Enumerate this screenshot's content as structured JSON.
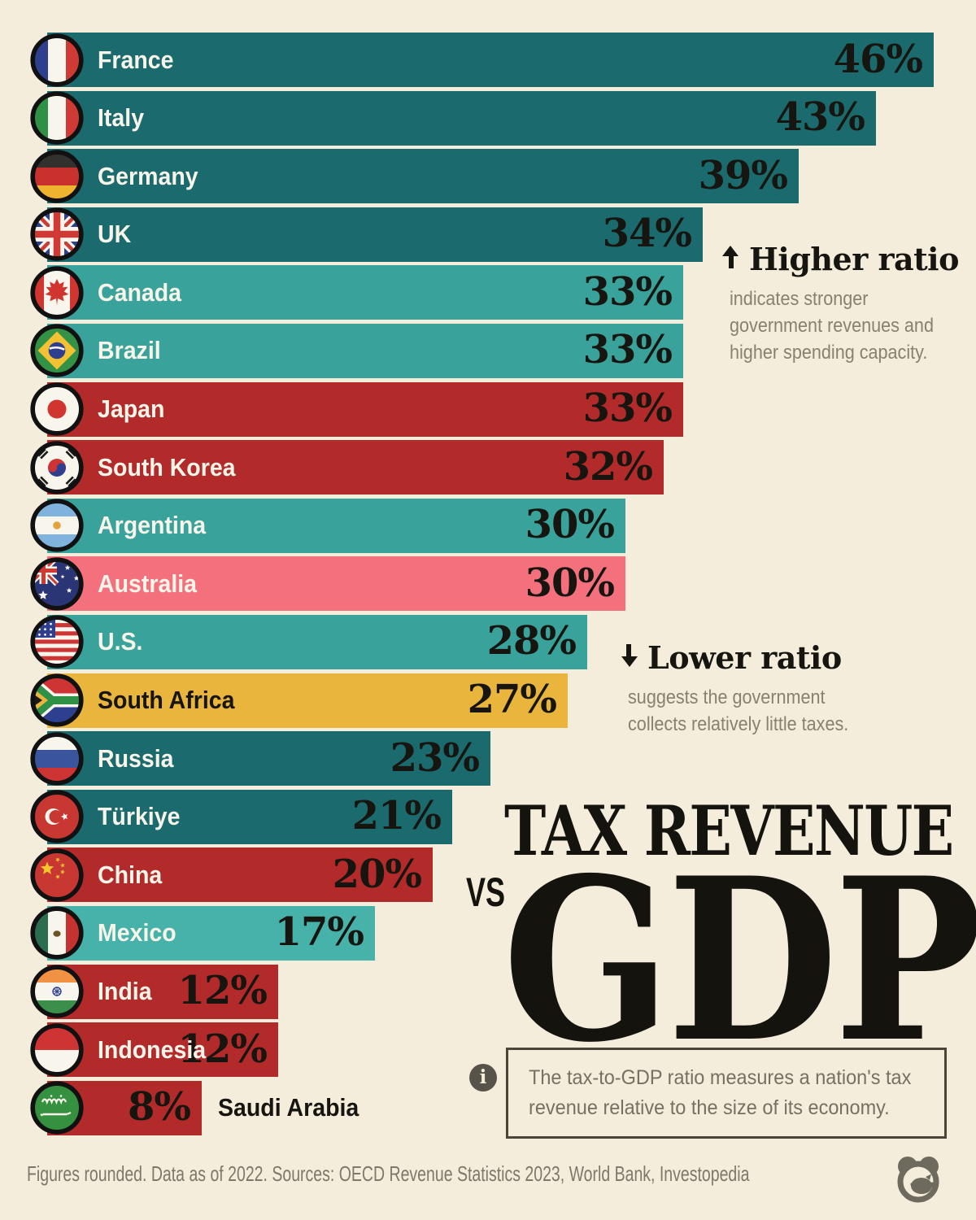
{
  "colors": {
    "background": "#f4eddc",
    "dark_teal": "#1b6a6e",
    "teal": "#38a29b",
    "light_teal": "#46b2a9",
    "red": "#b22b2a",
    "pink": "#f4707c",
    "yellow": "#eab53c",
    "text_dark": "#16150f",
    "text_light": "#f7f4e9",
    "text_gray": "#85826f"
  },
  "chart_data": {
    "type": "bar",
    "orientation": "horizontal",
    "title": "TAX REVENUE VS GDP",
    "unit": "percent (tax revenue as share of GDP)",
    "xlim": [
      0,
      48
    ],
    "categories": [
      "France",
      "Italy",
      "Germany",
      "UK",
      "Canada",
      "Brazil",
      "Japan",
      "South Korea",
      "Argentina",
      "Australia",
      "U.S.",
      "South Africa",
      "Russia",
      "Türkiye",
      "China",
      "Mexico",
      "India",
      "Indonesia",
      "Saudi Arabia"
    ],
    "values": [
      46,
      43,
      39,
      34,
      33,
      33,
      33,
      32,
      30,
      30,
      28,
      27,
      23,
      21,
      20,
      17,
      12,
      12,
      8
    ],
    "bars": [
      {
        "country": "France",
        "value": 46,
        "label": "46%",
        "color_key": "dark_teal",
        "flag": "france"
      },
      {
        "country": "Italy",
        "value": 43,
        "label": "43%",
        "color_key": "dark_teal",
        "flag": "italy"
      },
      {
        "country": "Germany",
        "value": 39,
        "label": "39%",
        "color_key": "dark_teal",
        "flag": "germany"
      },
      {
        "country": "UK",
        "value": 34,
        "label": "34%",
        "color_key": "dark_teal",
        "flag": "uk"
      },
      {
        "country": "Canada",
        "value": 33,
        "label": "33%",
        "color_key": "teal",
        "flag": "canada"
      },
      {
        "country": "Brazil",
        "value": 33,
        "label": "33%",
        "color_key": "teal",
        "flag": "brazil"
      },
      {
        "country": "Japan",
        "value": 33,
        "label": "33%",
        "color_key": "red",
        "flag": "japan"
      },
      {
        "country": "South Korea",
        "value": 32,
        "label": "32%",
        "color_key": "red",
        "flag": "south-korea"
      },
      {
        "country": "Argentina",
        "value": 30,
        "label": "30%",
        "color_key": "teal",
        "flag": "argentina"
      },
      {
        "country": "Australia",
        "value": 30,
        "label": "30%",
        "color_key": "pink",
        "flag": "australia"
      },
      {
        "country": "U.S.",
        "value": 28,
        "label": "28%",
        "color_key": "teal",
        "flag": "us"
      },
      {
        "country": "South Africa",
        "value": 27,
        "label": "27%",
        "color_key": "yellow",
        "flag": "south-africa",
        "label_dark": true
      },
      {
        "country": "Russia",
        "value": 23,
        "label": "23%",
        "color_key": "dark_teal",
        "flag": "russia"
      },
      {
        "country": "Türkiye",
        "value": 21,
        "label": "21%",
        "color_key": "dark_teal",
        "flag": "turkiye"
      },
      {
        "country": "China",
        "value": 20,
        "label": "20%",
        "color_key": "red",
        "flag": "china"
      },
      {
        "country": "Mexico",
        "value": 17,
        "label": "17%",
        "color_key": "light_teal",
        "flag": "mexico"
      },
      {
        "country": "India",
        "value": 12,
        "label": "12%",
        "color_key": "red",
        "flag": "india"
      },
      {
        "country": "Indonesia",
        "value": 12,
        "label": "12%",
        "color_key": "red",
        "flag": "indonesia"
      },
      {
        "country": "Saudi Arabia",
        "value": 8,
        "label": "8%",
        "color_key": "red",
        "flag": "saudi-arabia",
        "label_dark": true,
        "name_outside": true
      }
    ]
  },
  "annotations": {
    "higher": {
      "icon": "up-arrow-icon",
      "arrow": "↑",
      "title": "Higher ratio",
      "lines": [
        "indicates stronger",
        "government revenues and",
        "higher spending capacity."
      ]
    },
    "lower": {
      "icon": "down-arrow-icon",
      "arrow": "↓",
      "title": "Lower ratio",
      "lines": [
        "suggests the government",
        "collects relatively little taxes."
      ]
    }
  },
  "title": {
    "top": "TAX REVENUE",
    "vs": "VS",
    "main": "GDP"
  },
  "infobox": {
    "icon": "info-icon",
    "glyph": "i",
    "lines": [
      "The tax-to-GDP ratio measures a nation's tax",
      "revenue relative to the size of its economy."
    ]
  },
  "footer": {
    "text": "Figures rounded. Data as of 2022. Sources: OECD Revenue Statistics 2023, World Bank, Investopedia"
  },
  "logo": {
    "name": "visual-capitalist-logo"
  }
}
